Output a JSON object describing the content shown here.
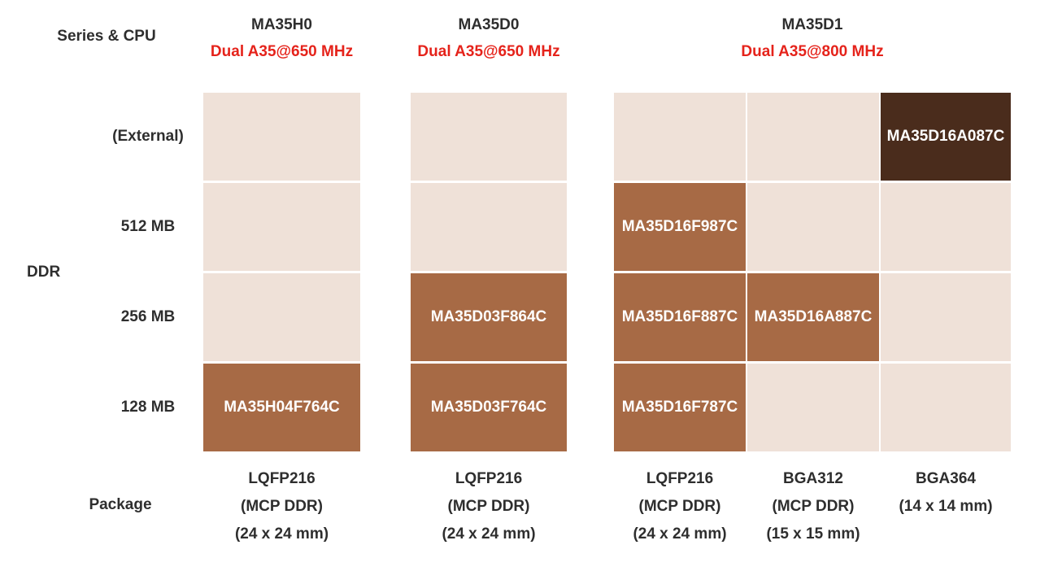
{
  "labels": {
    "series_cpu": "Series & CPU",
    "ddr": "DDR",
    "package": "Package"
  },
  "series_headers": [
    {
      "name": "MA35H0",
      "cpu": "Dual A35@650 MHz"
    },
    {
      "name": "MA35D0",
      "cpu": "Dual A35@650 MHz"
    },
    {
      "name": "MA35D1",
      "cpu": "Dual A35@800 MHz"
    }
  ],
  "ddr_rows": [
    "(External)",
    "512 MB",
    "256 MB",
    "128 MB"
  ],
  "columns": [
    {
      "series": "MA35H0",
      "cells": [
        {
          "part": "",
          "state": "empty"
        },
        {
          "part": "",
          "state": "empty"
        },
        {
          "part": "",
          "state": "empty"
        },
        {
          "part": "MA35H04F764C",
          "state": "part"
        }
      ],
      "package": [
        "LQFP216",
        "(MCP DDR)",
        "(24 x 24 mm)"
      ]
    },
    {
      "series": "MA35D0",
      "cells": [
        {
          "part": "",
          "state": "empty"
        },
        {
          "part": "",
          "state": "empty"
        },
        {
          "part": "MA35D03F864C",
          "state": "part"
        },
        {
          "part": "MA35D03F764C",
          "state": "part"
        }
      ],
      "package": [
        "LQFP216",
        "(MCP DDR)",
        "(24 x 24 mm)"
      ]
    },
    {
      "series": "MA35D1",
      "cells": [
        {
          "part": "",
          "state": "empty"
        },
        {
          "part": "MA35D16F987C",
          "state": "part"
        },
        {
          "part": "MA35D16F887C",
          "state": "part"
        },
        {
          "part": "MA35D16F787C",
          "state": "part"
        }
      ],
      "package": [
        "LQFP216",
        "(MCP DDR)",
        "(24 x 24 mm)"
      ]
    },
    {
      "series": "MA35D1",
      "cells": [
        {
          "part": "",
          "state": "empty"
        },
        {
          "part": "",
          "state": "empty"
        },
        {
          "part": "MA35D16A887C",
          "state": "part"
        },
        {
          "part": "",
          "state": "empty"
        }
      ],
      "package": [
        "BGA312",
        "(MCP DDR)",
        "(15 x 15 mm)"
      ]
    },
    {
      "series": "MA35D1",
      "cells": [
        {
          "part": "MA35D16A087C",
          "state": "highlight"
        },
        {
          "part": "",
          "state": "empty"
        },
        {
          "part": "",
          "state": "empty"
        },
        {
          "part": "",
          "state": "empty"
        }
      ],
      "package": [
        "BGA364",
        "(14 x 14 mm)"
      ]
    }
  ],
  "colors": {
    "empty_cell": "#efe1d8",
    "part_cell": "#a76a45",
    "highlight_cell": "#4a2c1c",
    "cpu_text": "#e5231b",
    "heading_text": "#2e2e2e",
    "part_text": "#ffffff"
  }
}
